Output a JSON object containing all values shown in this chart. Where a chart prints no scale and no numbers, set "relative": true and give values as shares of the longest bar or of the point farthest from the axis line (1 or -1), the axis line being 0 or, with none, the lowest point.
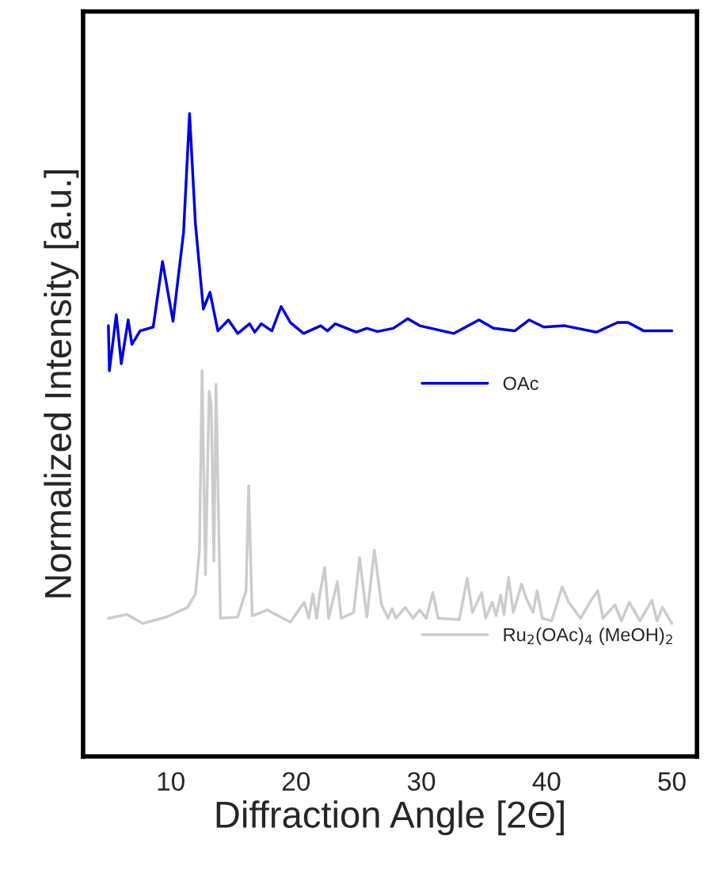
{
  "chart_data": {
    "type": "line",
    "relative": true,
    "xlabel": "Diffraction Angle [2Θ]",
    "ylabel": "Normalized Intensity [a.u.]",
    "xlim": [
      3,
      52
    ],
    "xticks": [
      10,
      20,
      30,
      40,
      50
    ],
    "grid": false,
    "legend": "right",
    "tick_labels": "x",
    "line_style": "solid",
    "marker": "none",
    "series": [
      {
        "name": "OAc",
        "color": "#0000e0",
        "x": [
          5.02,
          5.1,
          5.65,
          6.05,
          6.6,
          6.9,
          7.55,
          8.6,
          9.34,
          10.18,
          11.02,
          11.5,
          11.97,
          12.6,
          13.13,
          13.76,
          14.6,
          15.34,
          16.29,
          16.7,
          17.23,
          18.07,
          18.81,
          19.55,
          20.6,
          21.97,
          22.5,
          23.13,
          24.8,
          25.65,
          26.5,
          27.76,
          28.92,
          29.87,
          32.6,
          34.6,
          35.76,
          37.45,
          38.6,
          39.77,
          41.45,
          43.97,
          45.66,
          46.5,
          47.76,
          50.0
        ],
        "values": [
          0.67,
          0.6,
          0.687,
          0.611,
          0.679,
          0.641,
          0.662,
          0.668,
          0.77,
          0.677,
          0.815,
          1.0,
          0.828,
          0.696,
          0.722,
          0.662,
          0.679,
          0.658,
          0.673,
          0.66,
          0.673,
          0.662,
          0.7,
          0.675,
          0.658,
          0.67,
          0.662,
          0.673,
          0.66,
          0.666,
          0.661,
          0.666,
          0.681,
          0.67,
          0.658,
          0.679,
          0.666,
          0.662,
          0.679,
          0.668,
          0.67,
          0.66,
          0.675,
          0.675,
          0.662,
          0.662
        ]
      },
      {
        "name": "Ru$_{2}$(OAc)$_{4}$ (MeOH)$_{2}$",
        "color": "#cccccc",
        "x": [
          5.02,
          6.5,
          7.76,
          9.65,
          11.34,
          11.97,
          12.29,
          12.5,
          12.77,
          13.06,
          13.23,
          13.44,
          13.61,
          13.97,
          15.34,
          16.01,
          16.22,
          16.5,
          17.7,
          19.55,
          20.65,
          21.02,
          21.34,
          21.65,
          21.9,
          22.29,
          22.6,
          23.3,
          23.6,
          24.6,
          25.07,
          25.65,
          26.25,
          26.82,
          27.34,
          27.66,
          27.97,
          28.71,
          29.34,
          29.87,
          30.39,
          30.92,
          31.34,
          33.03,
          33.66,
          34.08,
          34.81,
          35.13,
          35.66,
          35.97,
          36.33,
          36.6,
          36.96,
          37.34,
          38.0,
          38.4,
          38.92,
          39.24,
          39.66,
          40.4,
          41.24,
          41.76,
          42.71,
          43.55,
          44.08,
          44.5,
          45.45,
          45.97,
          46.6,
          47.45,
          48.4,
          48.82,
          49.24,
          50.0
        ],
        "values": [
          0.215,
          0.221,
          0.207,
          0.217,
          0.232,
          0.253,
          0.321,
          0.6,
          0.283,
          0.568,
          0.547,
          0.304,
          0.579,
          0.215,
          0.217,
          0.258,
          0.421,
          0.219,
          0.228,
          0.209,
          0.24,
          0.215,
          0.253,
          0.215,
          0.253,
          0.294,
          0.215,
          0.272,
          0.215,
          0.224,
          0.309,
          0.217,
          0.321,
          0.236,
          0.215,
          0.23,
          0.215,
          0.232,
          0.215,
          0.228,
          0.215,
          0.255,
          0.215,
          0.213,
          0.277,
          0.224,
          0.255,
          0.215,
          0.24,
          0.219,
          0.251,
          0.221,
          0.279,
          0.224,
          0.268,
          0.245,
          0.224,
          0.258,
          0.215,
          0.211,
          0.264,
          0.24,
          0.215,
          0.243,
          0.258,
          0.215,
          0.236,
          0.211,
          0.24,
          0.211,
          0.243,
          0.211,
          0.232,
          0.207
        ]
      }
    ]
  }
}
